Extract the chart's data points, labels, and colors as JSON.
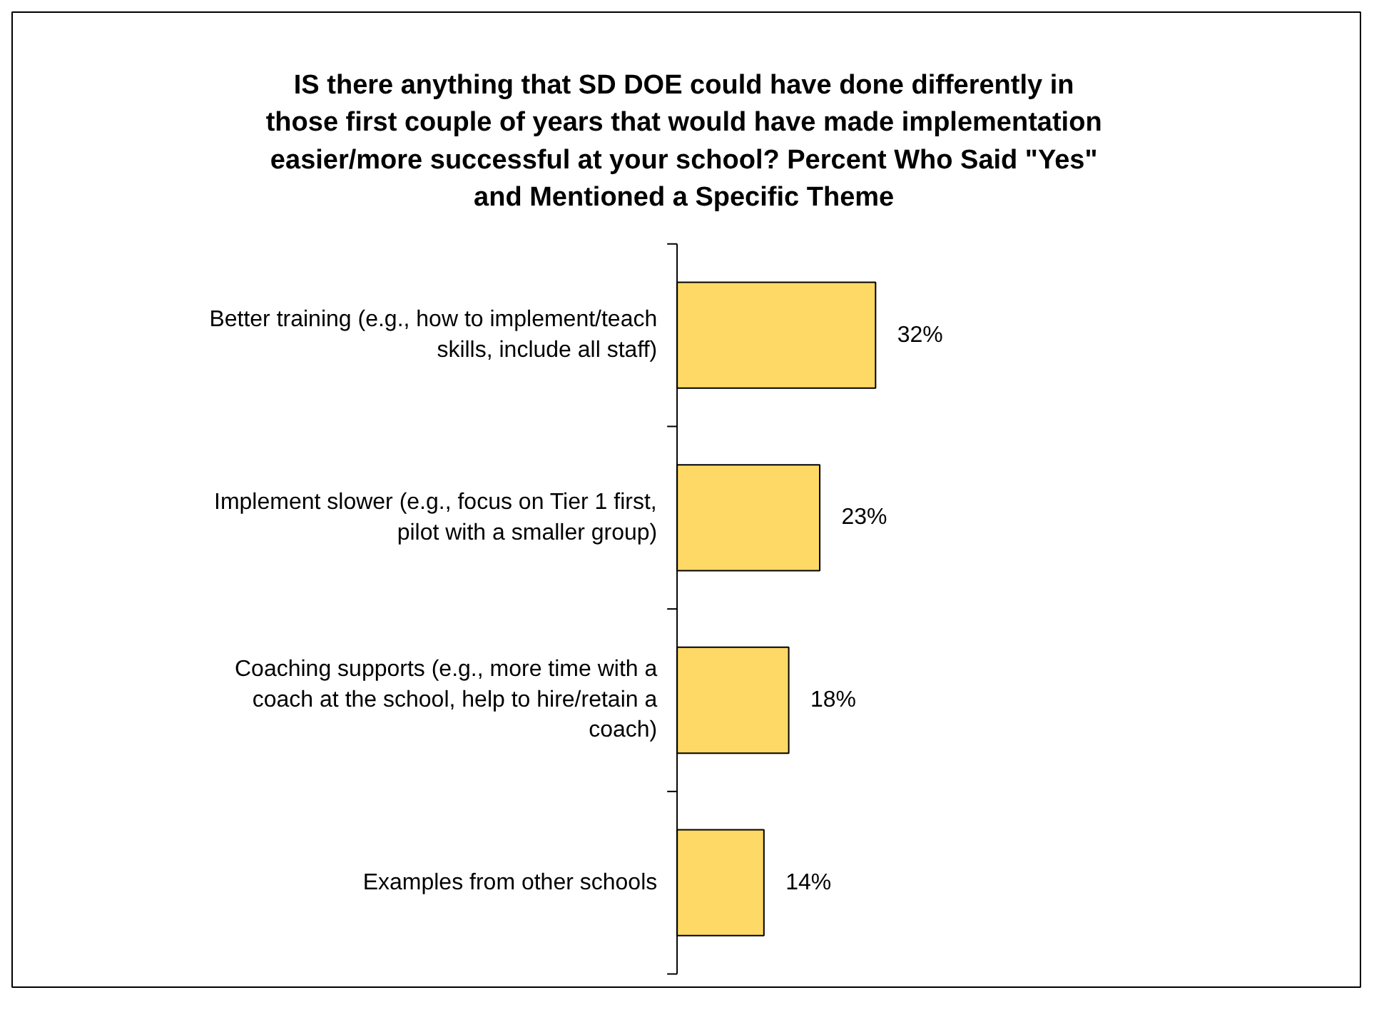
{
  "chart_data": {
    "type": "bar",
    "orientation": "horizontal",
    "title": "IS there anything that SD DOE could have done differently in those first couple of years that would have made implementation easier/more successful at your school? Percent Who Said \"Yes\" and Mentioned a Specific Theme",
    "categories": [
      "Better training (e.g., how to implement/teach skills, include all staff)",
      "Implement slower (e.g., focus on Tier 1 first, pilot with a smaller group)",
      "Coaching supports (e.g., more time with a coach at the school, help to hire/retain a coach)",
      "Examples from other schools"
    ],
    "values": [
      32,
      23,
      18,
      14
    ],
    "value_labels": [
      "32%",
      "23%",
      "18%",
      "14%"
    ],
    "color": "#ffd966"
  }
}
